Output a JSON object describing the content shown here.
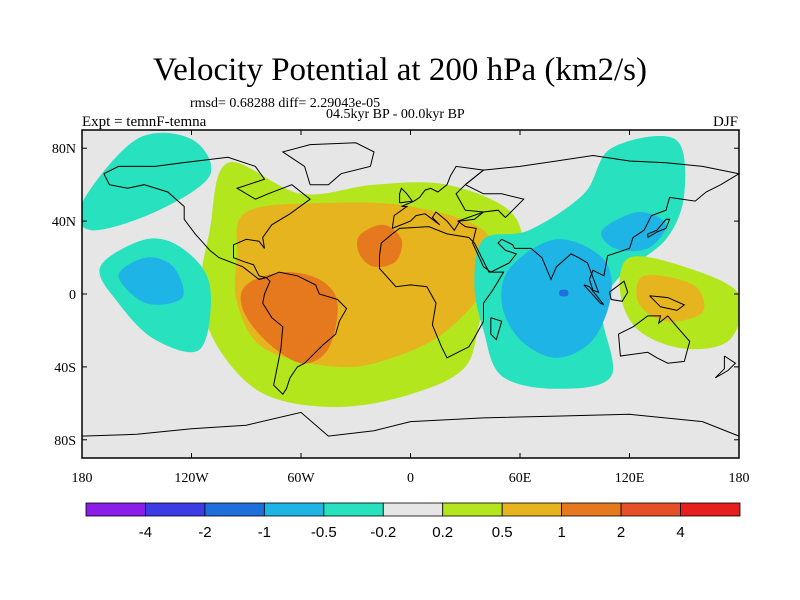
{
  "header": {
    "title": "Velocity Potential at 200 hPa (km2/s)",
    "stats": "rmsd= 0.68288 diff= 2.29043e-05",
    "period": "04.5kyr BP - 00.0kyr BP",
    "experiment": "Expt = temnF-temna",
    "season": "DJF"
  },
  "chart_data": {
    "type": "heatmap",
    "title": "Velocity Potential at 200 hPa (km2/s)",
    "xlabel": "",
    "ylabel": "",
    "xlim": [
      -180,
      180
    ],
    "ylim": [
      -90,
      90
    ],
    "x_ticks": [
      {
        "value": -180,
        "label": "180"
      },
      {
        "value": -120,
        "label": "120W"
      },
      {
        "value": -60,
        "label": "60W"
      },
      {
        "value": 0,
        "label": "0"
      },
      {
        "value": 60,
        "label": "60E"
      },
      {
        "value": 120,
        "label": "120E"
      },
      {
        "value": 180,
        "label": "180"
      }
    ],
    "y_ticks": [
      {
        "value": 80,
        "label": "80N"
      },
      {
        "value": 40,
        "label": "40N"
      },
      {
        "value": 0,
        "label": "0"
      },
      {
        "value": -40,
        "label": "40S"
      },
      {
        "value": -80,
        "label": "80S"
      }
    ],
    "contour_levels": [
      "-4",
      "-2",
      "-1",
      "-0.5",
      "-0.2",
      "0.2",
      "0.5",
      "1",
      "2",
      "4"
    ],
    "color_bins": [
      "#8a1ee8",
      "#3c3ce6",
      "#1e6edc",
      "#1eb4e6",
      "#28e1be",
      "#e6e6e6",
      "#b4e61e",
      "#e6b41e",
      "#e6781e",
      "#e65028",
      "#e61e1e"
    ],
    "field_regions": [
      {
        "name": "americas-atlantic-africa positive",
        "band": "0.2 to 0.5",
        "polygon": [
          [
            -100,
            72
          ],
          [
            -60,
            55
          ],
          [
            -20,
            60
          ],
          [
            20,
            60
          ],
          [
            55,
            45
          ],
          [
            60,
            20
          ],
          [
            40,
            -10
          ],
          [
            30,
            -40
          ],
          [
            0,
            -55
          ],
          [
            -40,
            -62
          ],
          [
            -80,
            -55
          ],
          [
            -105,
            -30
          ],
          [
            -115,
            0
          ],
          [
            -110,
            35
          ]
        ]
      },
      {
        "name": "americas-atlantic-africa",
        "band": "0.5 to 1",
        "polygon": [
          [
            -90,
            45
          ],
          [
            -45,
            50
          ],
          [
            0,
            48
          ],
          [
            40,
            35
          ],
          [
            45,
            10
          ],
          [
            20,
            -20
          ],
          [
            -10,
            -35
          ],
          [
            -40,
            -40
          ],
          [
            -80,
            -30
          ],
          [
            -95,
            -5
          ],
          [
            -95,
            20
          ]
        ]
      },
      {
        "name": "south america",
        "band": "1 to 2",
        "polygon": [
          [
            -90,
            5
          ],
          [
            -70,
            12
          ],
          [
            -50,
            8
          ],
          [
            -40,
            -5
          ],
          [
            -45,
            -30
          ],
          [
            -60,
            -38
          ],
          [
            -80,
            -25
          ],
          [
            -92,
            -8
          ]
        ]
      },
      {
        "name": "north africa",
        "band": "1 to 2",
        "polygon": [
          [
            -28,
            32
          ],
          [
            -15,
            38
          ],
          [
            -5,
            30
          ],
          [
            -8,
            18
          ],
          [
            -20,
            15
          ],
          [
            -28,
            22
          ]
        ]
      },
      {
        "name": "indian-pacific negative",
        "band": "-0.5 to -0.2",
        "polygon": [
          [
            40,
            30
          ],
          [
            65,
            35
          ],
          [
            95,
            55
          ],
          [
            110,
            80
          ],
          [
            145,
            85
          ],
          [
            150,
            55
          ],
          [
            140,
            30
          ],
          [
            115,
            10
          ],
          [
            105,
            -10
          ],
          [
            110,
            -45
          ],
          [
            80,
            -52
          ],
          [
            50,
            -45
          ],
          [
            40,
            -20
          ],
          [
            35,
            5
          ]
        ]
      },
      {
        "name": "indian ocean",
        "band": "-1 to -0.5",
        "polygon": [
          [
            55,
            15
          ],
          [
            80,
            30
          ],
          [
            105,
            20
          ],
          [
            110,
            0
          ],
          [
            100,
            -25
          ],
          [
            80,
            -35
          ],
          [
            60,
            -25
          ],
          [
            50,
            -5
          ]
        ]
      },
      {
        "name": "indian ocean core",
        "band": "-2 to -1",
        "polygon": [
          [
            82,
            2
          ],
          [
            86,
            2
          ],
          [
            86,
            -1
          ],
          [
            82,
            -1
          ]
        ]
      },
      {
        "name": "west pacific",
        "band": "-1 to -0.5",
        "polygon": [
          [
            105,
            35
          ],
          [
            125,
            45
          ],
          [
            140,
            38
          ],
          [
            130,
            25
          ],
          [
            112,
            25
          ]
        ]
      },
      {
        "name": "north pacific",
        "band": "-0.5 to -0.2",
        "polygon": [
          [
            -180,
            50
          ],
          [
            -150,
            85
          ],
          [
            -120,
            85
          ],
          [
            -110,
            65
          ],
          [
            -140,
            45
          ],
          [
            -175,
            35
          ]
        ]
      },
      {
        "name": "east pacific",
        "band": "-0.5 to -0.2",
        "polygon": [
          [
            -170,
            15
          ],
          [
            -145,
            30
          ],
          [
            -125,
            25
          ],
          [
            -110,
            5
          ],
          [
            -115,
            -30
          ],
          [
            -140,
            -25
          ],
          [
            -160,
            -5
          ]
        ]
      },
      {
        "name": "east pacific core",
        "band": "-1 to -0.5",
        "polygon": [
          [
            -160,
            10
          ],
          [
            -145,
            20
          ],
          [
            -130,
            15
          ],
          [
            -125,
            -2
          ],
          [
            -145,
            -5
          ]
        ]
      },
      {
        "name": "australia-maritime continent",
        "band": "0.2 to 0.5",
        "polygon": [
          [
            120,
            20
          ],
          [
            150,
            15
          ],
          [
            180,
            0
          ],
          [
            175,
            -25
          ],
          [
            150,
            -30
          ],
          [
            125,
            -20
          ],
          [
            115,
            0
          ]
        ]
      },
      {
        "name": "australia-maritime continent",
        "band": "0.5 to 1",
        "polygon": [
          [
            128,
            10
          ],
          [
            155,
            5
          ],
          [
            160,
            -10
          ],
          [
            140,
            -15
          ],
          [
            125,
            -5
          ]
        ]
      }
    ]
  }
}
